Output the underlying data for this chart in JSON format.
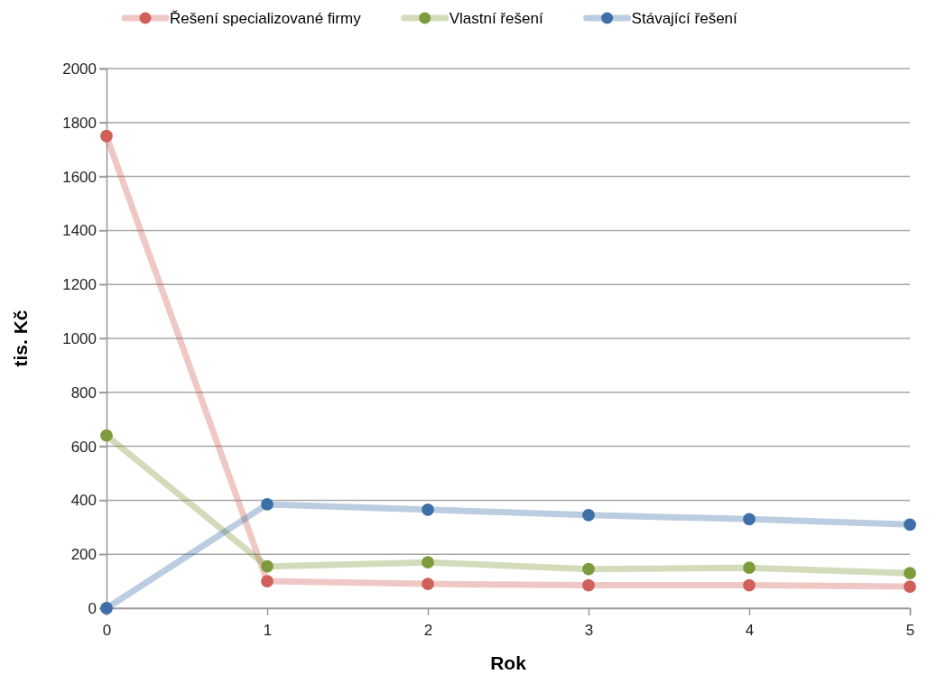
{
  "chart_data": {
    "type": "line",
    "xlabel": "Rok",
    "ylabel": "tis. Kč",
    "x": [
      0,
      1,
      2,
      3,
      4,
      5
    ],
    "series": [
      {
        "name": "Řešení specializované firmy",
        "color": "#d0605a",
        "values": [
          1750,
          100,
          90,
          85,
          85,
          80
        ]
      },
      {
        "name": "Vlastní řešení",
        "color": "#7d9b3c",
        "values": [
          640,
          155,
          170,
          145,
          150,
          130
        ]
      },
      {
        "name": "Stávající řešení",
        "color": "#3f6fa8",
        "values": [
          0,
          385,
          365,
          345,
          330,
          310
        ]
      }
    ],
    "xlim": [
      0,
      5
    ],
    "xticks": [
      0,
      1,
      2,
      3,
      4,
      5
    ],
    "ylim": [
      0,
      2000
    ],
    "yticks": [
      0,
      200,
      400,
      600,
      800,
      1000,
      1200,
      1400,
      1600,
      1800,
      2000
    ],
    "grid": "y",
    "legend": "top",
    "marker": "circle",
    "line_style": "solid"
  }
}
